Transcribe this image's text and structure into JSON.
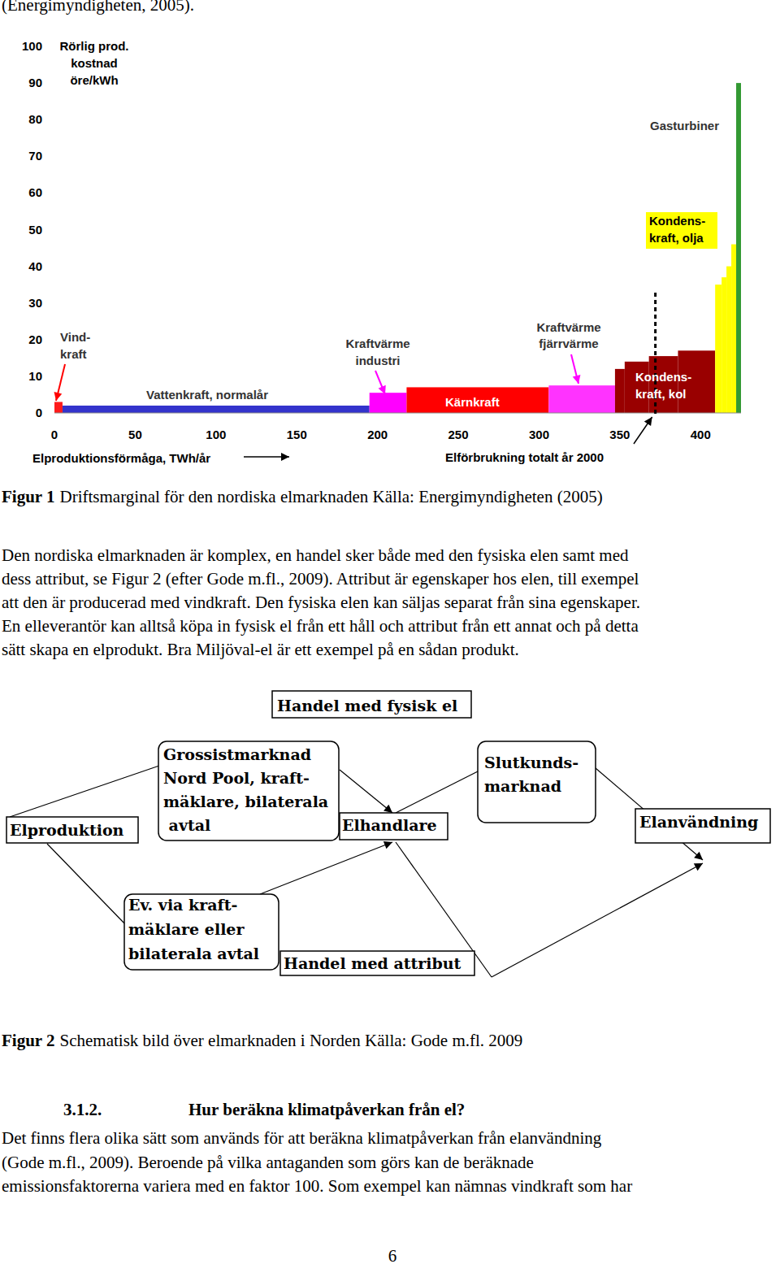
{
  "header_text": "(Energimyndigheten, 2005).",
  "chart_data": {
    "type": "histogram",
    "y_label": "Rörlig prod.\nkostnad\nöre/kWh",
    "x_label": "Elproduktionsförmåga, TWh/år",
    "bins": [
      0,
      5,
      195,
      218,
      306,
      347,
      353,
      368,
      386,
      409,
      413,
      416,
      419,
      422,
      425
    ],
    "values": [
      3,
      2,
      5.5,
      7,
      7.5,
      12,
      14,
      15.5,
      17,
      35,
      37,
      40,
      46,
      90
    ],
    "colors": [
      "#ff1a1a",
      "#3333cc",
      "#ff00ff",
      "#ff0000",
      "#ff33ff",
      "#990000",
      "#990000",
      "#990000",
      "#990000",
      "#ffff00",
      "#ffff00",
      "#ffff00",
      "#ffff00",
      "#339933"
    ],
    "xlim": [
      0,
      425
    ],
    "ylim": [
      0,
      100
    ],
    "xticks": [
      0,
      50,
      100,
      150,
      200,
      250,
      300,
      350,
      400
    ],
    "yticks": [
      0,
      10,
      20,
      30,
      40,
      50,
      60,
      70,
      80,
      90,
      100
    ],
    "grid": false,
    "consumption_line": {
      "x": 372,
      "label": "Elförbrukning totalt år 2000"
    },
    "annotations": [
      "Vind-\nkraft",
      "Vattenkraft, normalår",
      "Kraftvärme\nindustri",
      "Kärnkraft",
      "Kraftvärme\nfjärrvärme",
      "Kondens-\nkraft, kol",
      "Kondens-\nkraft, olja",
      "Gasturbiner"
    ]
  },
  "figure1_caption": {
    "label": "Figur 1",
    "text": "Driftsmarginal för den nordiska elmarknaden Källa: Energimyndigheten (2005)"
  },
  "paragraph1": [
    "Den nordiska elmarknaden är komplex, en handel sker både med den fysiska elen samt med",
    "dess attribut, se Figur 2 (efter Gode m.fl., 2009). Attribut är egenskaper hos elen, till exempel",
    "att den är producerad med vindkraft. Den fysiska elen kan säljas separat från sina egenskaper.",
    "En elleverantör kan alltså köpa in fysisk el från ett håll och attribut från ett annat och på detta",
    "sätt skapa en elprodukt. Bra Miljöval-el är ett exempel på en sådan produkt."
  ],
  "figure2": {
    "physical_trade": "Handel med fysisk el",
    "wholesale": "Grossistmarknad\nNord Pool, kraft-\nmäklare, bilaterala\n avtal",
    "production": "Elproduktion",
    "retailer": "Elhandlare",
    "end_customer": "Slutkunds-\nmarknad",
    "usage": "Elanvändning",
    "broker": "Ev. via kraft-\nmäklare eller\nbilaterala avtal",
    "attribute_trade": "Handel med attribut"
  },
  "figure2_caption": {
    "label": "Figur 2",
    "text": "Schematisk bild över elmarknaden i Norden Källa: Gode m.fl. 2009"
  },
  "section": {
    "number": "3.1.2.",
    "title": "Hur beräkna klimatpåverkan från el?"
  },
  "paragraph2": [
    "Det finns flera olika sätt som används för att beräkna klimatpåverkan från elanvändning",
    "(Gode m.fl., 2009). Beroende på vilka antaganden som görs kan de beräknade",
    "emissionsfaktorerna variera med en faktor 100. Som exempel kan nämnas vindkraft som har"
  ],
  "page_number": "6"
}
